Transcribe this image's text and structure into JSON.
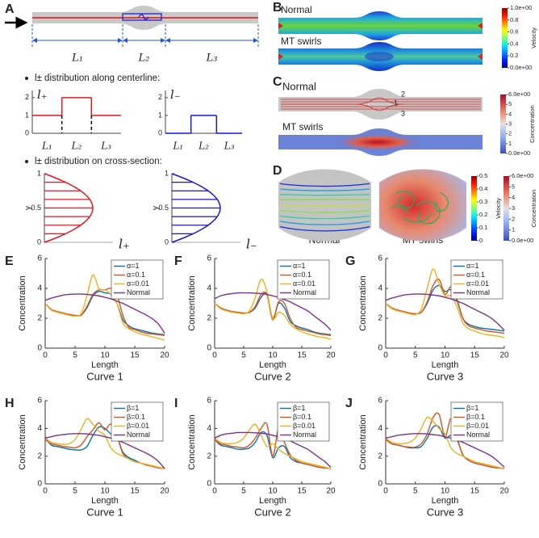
{
  "panel_a": {
    "label": "A",
    "segments": [
      "L₁",
      "L₂",
      "L₃"
    ],
    "centerline": {
      "heading": "l± distribution along centerline:",
      "plus": {
        "name": "l₊",
        "ylim": [
          0,
          2.4
        ],
        "yticks": [
          0,
          1,
          2
        ],
        "levels": [
          1,
          2,
          1
        ],
        "categories": [
          "L₁",
          "L₂",
          "L₃"
        ],
        "color": "#e8141c"
      },
      "minus": {
        "name": "l₋",
        "ylim": [
          0,
          2.4
        ],
        "yticks": [
          0,
          1,
          2
        ],
        "levels": [
          0,
          1,
          0
        ],
        "categories": [
          "L₁",
          "L₂",
          "L₃"
        ],
        "color": "#1515e0"
      }
    },
    "cross_section": {
      "heading": "l± distribution on cross-section:",
      "plus": {
        "name": "l₊",
        "ylabel": "y",
        "ylim": [
          0,
          1
        ],
        "yticks": [
          0,
          0.5,
          1
        ],
        "color": "#e8141c"
      },
      "minus": {
        "name": "l₋",
        "ylabel": "y",
        "ylim": [
          0,
          1
        ],
        "yticks": [
          0,
          0.5,
          1
        ],
        "color": "#1515e0"
      }
    }
  },
  "panel_b": {
    "label": "B",
    "top": "Normal",
    "bottom": "MT swirls",
    "colorbar": {
      "title": "Velocity",
      "lim": [
        0,
        1
      ],
      "ticks": [
        {
          "value": 1,
          "label": "1.0e+00"
        },
        0.8,
        0.6,
        0.4,
        0.2,
        {
          "value": 0,
          "label": "0.0e+00"
        }
      ]
    }
  },
  "panel_c": {
    "label": "C",
    "top": "Normal",
    "bottom": "MT swirls",
    "streamlines": [
      "2",
      "1",
      "3"
    ],
    "colorbar": {
      "title": "Concentration",
      "lim": [
        0,
        6
      ],
      "ticks": [
        {
          "value": 6,
          "label": "6.0e+00"
        },
        5,
        4,
        3,
        2,
        1,
        {
          "value": 0,
          "label": "0.0e+00"
        }
      ]
    }
  },
  "panel_d": {
    "label": "D",
    "left": "Normal",
    "right": "MT swirls",
    "velocity": {
      "title": "Velocity",
      "lim": [
        0,
        0.5
      ],
      "ticks": [
        0.5,
        0.4,
        0.3,
        0.2,
        0.1,
        0
      ]
    },
    "concentration": {
      "title": "Concentration",
      "lim": [
        0,
        6
      ],
      "ticks": [
        {
          "value": 6,
          "label": "6.0e+00"
        },
        5,
        4,
        3,
        2,
        1,
        {
          "value": 0,
          "label": "0.0e+00"
        }
      ]
    }
  },
  "chart_data": [
    {
      "type": "line",
      "panel": "E",
      "title": "Curve 1",
      "xlabel": "Length",
      "ylabel": "Concentration",
      "legend": "upper right",
      "x": [
        0,
        1,
        2,
        3,
        4,
        5,
        6,
        7,
        8,
        9,
        10,
        11,
        12,
        13,
        14,
        15,
        16,
        17,
        18,
        19,
        20
      ],
      "xlim": [
        0,
        20
      ],
      "ylim": [
        0,
        6
      ],
      "xticks": [
        0,
        5,
        10,
        15,
        20
      ],
      "yticks": [
        0,
        2,
        4,
        6
      ],
      "series": [
        {
          "name": "α=1",
          "color": "#0072BD",
          "values": [
            3.0,
            2.6,
            2.45,
            2.35,
            2.25,
            2.2,
            2.2,
            2.7,
            3.5,
            3.8,
            3.7,
            3.6,
            3.0,
            1.9,
            1.5,
            1.3,
            1.2,
            1.1,
            1.0,
            0.95,
            0.9
          ]
        },
        {
          "name": "α=0.1",
          "color": "#D95319",
          "values": [
            3.0,
            2.6,
            2.45,
            2.35,
            2.25,
            2.2,
            2.2,
            2.8,
            3.6,
            3.9,
            3.9,
            4.0,
            3.6,
            2.2,
            1.4,
            1.25,
            1.1,
            1.0,
            0.95,
            0.9,
            0.85
          ]
        },
        {
          "name": "α=0.01",
          "color": "#EDB120",
          "values": [
            3.0,
            2.55,
            2.4,
            2.3,
            2.2,
            2.15,
            2.3,
            3.5,
            4.9,
            4.0,
            3.9,
            3.6,
            3.0,
            1.7,
            1.3,
            1.1,
            0.95,
            0.85,
            0.75,
            0.65,
            0.55
          ]
        },
        {
          "name": "Normal",
          "color": "#7E2F8E",
          "values": [
            3.2,
            3.35,
            3.45,
            3.55,
            3.6,
            3.62,
            3.62,
            3.6,
            3.55,
            3.5,
            3.4,
            3.3,
            3.15,
            3.0,
            2.8,
            2.6,
            2.4,
            2.2,
            1.95,
            1.6,
            1.0
          ]
        }
      ]
    },
    {
      "type": "line",
      "panel": "F",
      "title": "Curve 2",
      "xlabel": "Length",
      "ylabel": "Concentration",
      "legend": "upper right",
      "x": [
        0,
        1,
        2,
        3,
        4,
        5,
        6,
        7,
        8,
        9,
        10,
        11,
        12,
        13,
        14,
        15,
        16,
        17,
        18,
        19,
        20
      ],
      "xlim": [
        0,
        20
      ],
      "ylim": [
        0,
        6
      ],
      "xticks": [
        0,
        5,
        10,
        15,
        20
      ],
      "yticks": [
        0,
        2,
        4,
        6
      ],
      "series": [
        {
          "name": "α=1",
          "color": "#0072BD",
          "values": [
            3.0,
            2.7,
            2.55,
            2.45,
            2.4,
            2.35,
            2.4,
            2.7,
            3.4,
            3.6,
            2.0,
            3.0,
            2.7,
            1.8,
            1.5,
            1.35,
            1.25,
            1.1,
            1.0,
            0.95,
            0.9
          ]
        },
        {
          "name": "α=0.1",
          "color": "#D95319",
          "values": [
            3.0,
            2.7,
            2.55,
            2.45,
            2.4,
            2.35,
            2.4,
            2.8,
            3.6,
            3.6,
            1.9,
            3.1,
            3.0,
            2.0,
            1.4,
            1.25,
            1.15,
            1.05,
            0.95,
            0.9,
            0.85
          ]
        },
        {
          "name": "α=0.01",
          "color": "#EDB120",
          "values": [
            3.0,
            2.65,
            2.5,
            2.4,
            2.35,
            2.3,
            2.5,
            3.4,
            4.6,
            3.8,
            2.0,
            2.4,
            2.2,
            1.6,
            1.3,
            1.1,
            0.95,
            0.85,
            0.75,
            0.7,
            0.6
          ]
        },
        {
          "name": "Normal",
          "color": "#7E2F8E",
          "values": [
            3.3,
            3.5,
            3.6,
            3.65,
            3.7,
            3.7,
            3.7,
            3.68,
            3.65,
            3.6,
            3.5,
            3.4,
            3.25,
            3.1,
            2.9,
            2.7,
            2.5,
            2.2,
            1.9,
            1.6,
            1.2
          ]
        }
      ]
    },
    {
      "type": "line",
      "panel": "G",
      "title": "Curve 3",
      "xlabel": "Length",
      "ylabel": "Concentration",
      "legend": "upper right",
      "x": [
        0,
        1,
        2,
        3,
        4,
        5,
        6,
        7,
        8,
        9,
        10,
        11,
        12,
        13,
        14,
        15,
        16,
        17,
        18,
        19,
        20
      ],
      "xlim": [
        0,
        20
      ],
      "ylim": [
        0,
        6
      ],
      "xticks": [
        0,
        5,
        10,
        15,
        20
      ],
      "yticks": [
        0,
        2,
        4,
        6
      ],
      "series": [
        {
          "name": "α=1",
          "color": "#0072BD",
          "values": [
            3.0,
            2.7,
            2.55,
            2.45,
            2.35,
            2.3,
            2.4,
            3.0,
            3.9,
            4.2,
            3.8,
            3.9,
            3.2,
            2.0,
            1.6,
            1.45,
            1.35,
            1.3,
            1.25,
            1.2,
            1.15
          ]
        },
        {
          "name": "α=0.1",
          "color": "#D95319",
          "values": [
            3.0,
            2.7,
            2.55,
            2.45,
            2.35,
            2.3,
            2.4,
            3.1,
            4.2,
            4.6,
            3.6,
            4.1,
            3.3,
            2.0,
            1.5,
            1.35,
            1.25,
            1.15,
            1.1,
            1.05,
            1.0
          ]
        },
        {
          "name": "α=0.01",
          "color": "#EDB120",
          "values": [
            3.0,
            2.65,
            2.5,
            2.4,
            2.3,
            2.25,
            2.6,
            4.0,
            5.3,
            4.3,
            3.5,
            3.5,
            2.8,
            1.7,
            1.3,
            1.15,
            1.0,
            0.9,
            0.85,
            0.8,
            0.7
          ]
        },
        {
          "name": "Normal",
          "color": "#7E2F8E",
          "values": [
            3.2,
            3.35,
            3.45,
            3.55,
            3.6,
            3.62,
            3.62,
            3.6,
            3.55,
            3.5,
            3.4,
            3.3,
            3.15,
            3.0,
            2.8,
            2.6,
            2.4,
            2.2,
            1.95,
            1.6,
            1.2
          ]
        }
      ]
    },
    {
      "type": "line",
      "panel": "H",
      "title": "Curve 1",
      "xlabel": "Length",
      "ylabel": "Concentration",
      "legend": "upper right",
      "x": [
        0,
        1,
        2,
        3,
        4,
        5,
        6,
        7,
        8,
        9,
        10,
        11,
        12,
        13,
        14,
        15,
        16,
        17,
        18,
        19,
        20
      ],
      "xlim": [
        0,
        20
      ],
      "ylim": [
        0,
        6
      ],
      "xticks": [
        0,
        5,
        10,
        15,
        20
      ],
      "yticks": [
        0,
        2,
        4,
        6
      ],
      "series": [
        {
          "name": "β=1",
          "color": "#0072BD",
          "values": [
            3.4,
            2.8,
            2.7,
            2.6,
            2.5,
            2.45,
            2.45,
            2.7,
            3.5,
            4.1,
            4.0,
            3.6,
            3.4,
            2.3,
            1.9,
            1.7,
            1.5,
            1.4,
            1.3,
            1.2,
            1.1
          ]
        },
        {
          "name": "β=0.1",
          "color": "#D95319",
          "values": [
            3.2,
            2.9,
            2.8,
            2.7,
            2.65,
            2.6,
            2.8,
            3.4,
            3.9,
            4.4,
            3.9,
            4.3,
            3.5,
            2.2,
            1.8,
            1.6,
            1.5,
            1.35,
            1.25,
            1.15,
            1.1
          ]
        },
        {
          "name": "β=0.01",
          "color": "#EDB120",
          "values": [
            3.3,
            3.0,
            2.9,
            2.85,
            2.9,
            3.2,
            3.9,
            4.7,
            4.3,
            3.8,
            3.5,
            2.6,
            2.2,
            2.0,
            1.8,
            1.6,
            1.5,
            1.4,
            1.3,
            1.2,
            1.1
          ]
        },
        {
          "name": "Normal",
          "color": "#7E2F8E",
          "values": [
            3.3,
            3.4,
            3.5,
            3.55,
            3.6,
            3.62,
            3.62,
            3.6,
            3.55,
            3.5,
            3.4,
            3.3,
            3.15,
            3.0,
            2.8,
            2.6,
            2.4,
            2.2,
            1.95,
            1.6,
            1.1
          ]
        }
      ]
    },
    {
      "type": "line",
      "panel": "I",
      "title": "Curve 2",
      "xlabel": "Length",
      "ylabel": "Concentration",
      "legend": "upper right",
      "x": [
        0,
        1,
        2,
        3,
        4,
        5,
        6,
        7,
        8,
        9,
        10,
        11,
        12,
        13,
        14,
        15,
        16,
        17,
        18,
        19,
        20
      ],
      "xlim": [
        0,
        20
      ],
      "ylim": [
        0,
        6
      ],
      "xticks": [
        0,
        5,
        10,
        15,
        20
      ],
      "yticks": [
        0,
        2,
        4,
        6
      ],
      "series": [
        {
          "name": "β=1",
          "color": "#0072BD",
          "values": [
            3.2,
            2.8,
            2.7,
            2.6,
            2.5,
            2.5,
            2.6,
            3.0,
            3.7,
            3.5,
            1.9,
            2.6,
            2.7,
            1.9,
            1.6,
            1.5,
            1.4,
            1.3,
            1.2,
            1.15,
            1.1
          ]
        },
        {
          "name": "β=0.1",
          "color": "#D95319",
          "values": [
            3.2,
            2.9,
            2.8,
            2.7,
            2.65,
            2.6,
            2.8,
            3.3,
            4.0,
            4.3,
            2.0,
            4.0,
            3.0,
            2.1,
            1.7,
            1.5,
            1.4,
            1.3,
            1.2,
            1.15,
            1.1
          ]
        },
        {
          "name": "β=0.01",
          "color": "#EDB120",
          "values": [
            3.3,
            3.0,
            2.9,
            2.9,
            3.0,
            3.3,
            3.9,
            4.3,
            3.5,
            2.7,
            2.9,
            2.5,
            2.2,
            2.0,
            1.8,
            1.6,
            1.5,
            1.4,
            1.3,
            1.2,
            1.1
          ]
        },
        {
          "name": "Normal",
          "color": "#7E2F8E",
          "values": [
            3.3,
            3.5,
            3.6,
            3.65,
            3.7,
            3.7,
            3.7,
            3.68,
            3.65,
            3.6,
            3.5,
            3.4,
            3.25,
            3.1,
            2.9,
            2.7,
            2.5,
            2.2,
            1.9,
            1.6,
            1.2
          ]
        }
      ]
    },
    {
      "type": "line",
      "panel": "J",
      "title": "Curve 3",
      "xlabel": "Length",
      "ylabel": "Concentration",
      "legend": "upper right",
      "x": [
        0,
        1,
        2,
        3,
        4,
        5,
        6,
        7,
        8,
        9,
        10,
        11,
        12,
        13,
        14,
        15,
        16,
        17,
        18,
        19,
        20
      ],
      "xlim": [
        0,
        20
      ],
      "ylim": [
        0,
        6
      ],
      "xticks": [
        0,
        5,
        10,
        15,
        20
      ],
      "yticks": [
        0,
        2,
        4,
        6
      ],
      "series": [
        {
          "name": "β=1",
          "color": "#0072BD",
          "values": [
            3.3,
            2.9,
            2.8,
            2.7,
            2.6,
            2.6,
            2.7,
            3.3,
            4.1,
            4.1,
            3.3,
            3.5,
            3.2,
            2.1,
            1.7,
            1.5,
            1.4,
            1.3,
            1.2,
            1.15,
            1.1
          ]
        },
        {
          "name": "β=0.1",
          "color": "#D95319",
          "values": [
            3.2,
            2.9,
            2.8,
            2.7,
            2.65,
            2.65,
            2.9,
            3.6,
            4.8,
            5.0,
            3.4,
            4.7,
            3.4,
            2.1,
            1.7,
            1.5,
            1.4,
            1.3,
            1.2,
            1.15,
            1.1
          ]
        },
        {
          "name": "β=0.01",
          "color": "#EDB120",
          "values": [
            3.3,
            3.0,
            2.9,
            2.9,
            3.0,
            3.3,
            4.0,
            4.8,
            4.5,
            4.0,
            3.6,
            2.6,
            2.2,
            2.0,
            1.8,
            1.6,
            1.5,
            1.4,
            1.3,
            1.2,
            1.1
          ]
        },
        {
          "name": "Normal",
          "color": "#7E2F8E",
          "values": [
            3.3,
            3.4,
            3.5,
            3.55,
            3.6,
            3.62,
            3.62,
            3.6,
            3.55,
            3.5,
            3.4,
            3.3,
            3.15,
            3.0,
            2.8,
            2.6,
            2.4,
            2.2,
            1.95,
            1.6,
            1.2
          ]
        }
      ]
    }
  ]
}
